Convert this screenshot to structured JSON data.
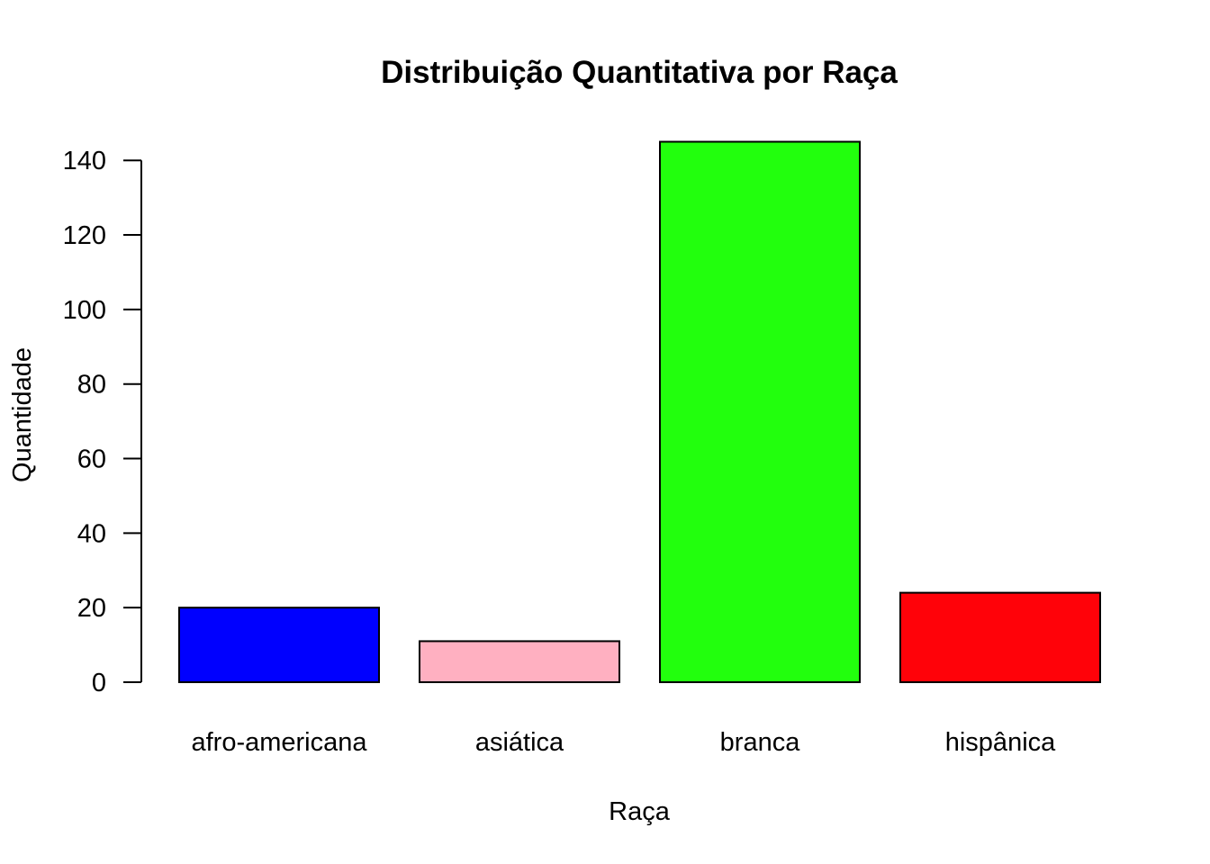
{
  "chart_data": {
    "type": "bar",
    "title": "Distribuição Quantitativa por Raça",
    "xlabel": "Raça",
    "ylabel": "Quantidade",
    "categories": [
      "afro-americana",
      "asiática",
      "branca",
      "hispânica"
    ],
    "values": [
      20,
      11,
      145,
      24
    ],
    "colors": [
      "#0000ff",
      "#ffb0c1",
      "#22ff0d",
      "#ff0209"
    ],
    "ylim": [
      0,
      145
    ],
    "yticks": [
      0,
      20,
      40,
      60,
      80,
      100,
      120,
      140
    ],
    "grid": false,
    "legend": "none"
  }
}
